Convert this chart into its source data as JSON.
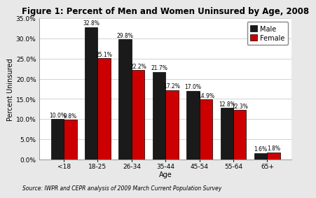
{
  "title": "Figure 1: Percent of Men and Women Uninsured by Age, 2008",
  "categories": [
    "<18",
    "18-25",
    "26-34",
    "35-44",
    "45-54",
    "55-64",
    "65+"
  ],
  "male_values": [
    10.0,
    32.8,
    29.8,
    21.7,
    17.0,
    12.8,
    1.6
  ],
  "female_values": [
    9.8,
    25.1,
    22.2,
    17.2,
    14.9,
    12.3,
    1.8
  ],
  "male_color": "#1a1a1a",
  "female_color": "#cc0000",
  "bar_edge_color": "#000000",
  "xlabel": "Age",
  "ylabel": "Percent Uninsured",
  "ylim": [
    0,
    35.0
  ],
  "yticks": [
    0,
    5.0,
    10.0,
    15.0,
    20.0,
    25.0,
    30.0,
    35.0
  ],
  "source_text": "Source: IWPR and CEPR analysis of 2009 March Current Population Survey",
  "legend_labels": [
    "Male",
    "Female"
  ],
  "bg_color": "#e8e8e8",
  "plot_bg_color": "#ffffff",
  "title_fontsize": 8.5,
  "axis_label_fontsize": 7,
  "tick_fontsize": 6.5,
  "annotation_fontsize": 5.5,
  "source_fontsize": 5.5,
  "legend_fontsize": 7
}
